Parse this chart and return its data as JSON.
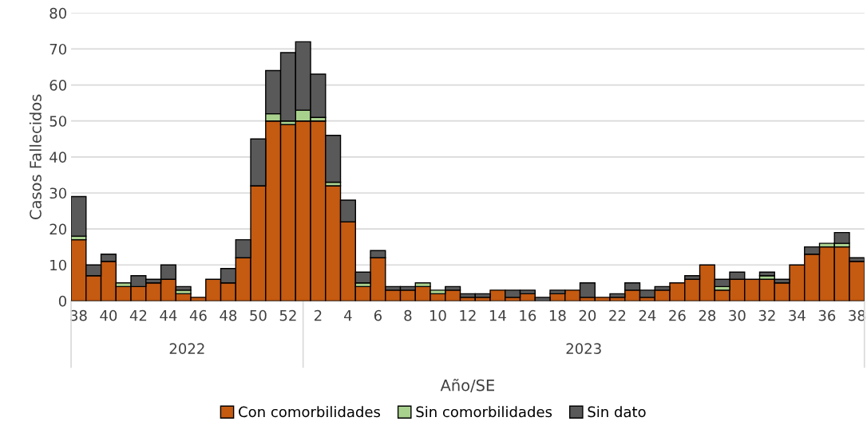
{
  "chart_data": {
    "type": "bar",
    "stacked": true,
    "xlabel": "Año/SE",
    "ylabel": "Casos Fallecidos",
    "categories": [
      "38",
      null,
      "40",
      null,
      "42",
      null,
      "44",
      null,
      "46",
      null,
      "48",
      null,
      "50",
      null,
      "52",
      null,
      "2",
      null,
      "4",
      null,
      "6",
      null,
      "8",
      null,
      "10",
      null,
      "12",
      null,
      "14",
      null,
      "16",
      null,
      "18",
      null,
      "20",
      null,
      "22",
      null,
      "24",
      null,
      "26",
      null,
      "28",
      null,
      "30",
      null,
      "32",
      null,
      "34",
      null,
      "36",
      null,
      "38"
    ],
    "series": [
      {
        "name": "Con comorbilidades",
        "color": "#c55a11",
        "values": [
          17,
          7,
          11,
          4,
          4,
          5,
          6,
          2,
          1,
          6,
          5,
          12,
          32,
          50,
          49,
          50,
          50,
          32,
          22,
          4,
          12,
          3,
          3,
          4,
          2,
          3,
          1,
          1,
          3,
          1,
          2,
          0,
          2,
          3,
          1,
          1,
          1,
          3,
          1,
          3,
          5,
          6,
          10,
          3,
          6,
          6,
          6,
          5,
          10,
          13,
          15,
          15,
          11
        ]
      },
      {
        "name": "Sin comorbilidades",
        "color": "#a9d18e",
        "values": [
          1,
          0,
          0,
          1,
          0,
          0,
          0,
          1,
          0,
          0,
          0,
          0,
          0,
          2,
          1,
          3,
          1,
          1,
          0,
          1,
          0,
          0,
          0,
          1,
          1,
          0,
          0,
          0,
          0,
          0,
          0,
          0,
          0,
          0,
          0,
          0,
          0,
          0,
          0,
          0,
          0,
          0,
          0,
          1,
          0,
          0,
          1,
          0,
          0,
          0,
          1,
          1,
          0
        ]
      },
      {
        "name": "Sin dato",
        "color": "#595959",
        "values": [
          11,
          3,
          2,
          0,
          3,
          1,
          4,
          1,
          0,
          0,
          4,
          5,
          13,
          12,
          19,
          19,
          12,
          13,
          6,
          3,
          2,
          1,
          1,
          0,
          0,
          1,
          1,
          1,
          0,
          2,
          1,
          1,
          1,
          0,
          4,
          0,
          1,
          2,
          2,
          1,
          0,
          1,
          0,
          2,
          2,
          0,
          1,
          1,
          0,
          2,
          0,
          3,
          1
        ]
      }
    ],
    "annotations": [
      "2022",
      "2023"
    ],
    "ylim": [
      0,
      80
    ],
    "yticks": [
      0,
      10,
      20,
      30,
      40,
      50,
      60,
      70,
      80
    ],
    "grid": "y",
    "legend": "bottom"
  }
}
